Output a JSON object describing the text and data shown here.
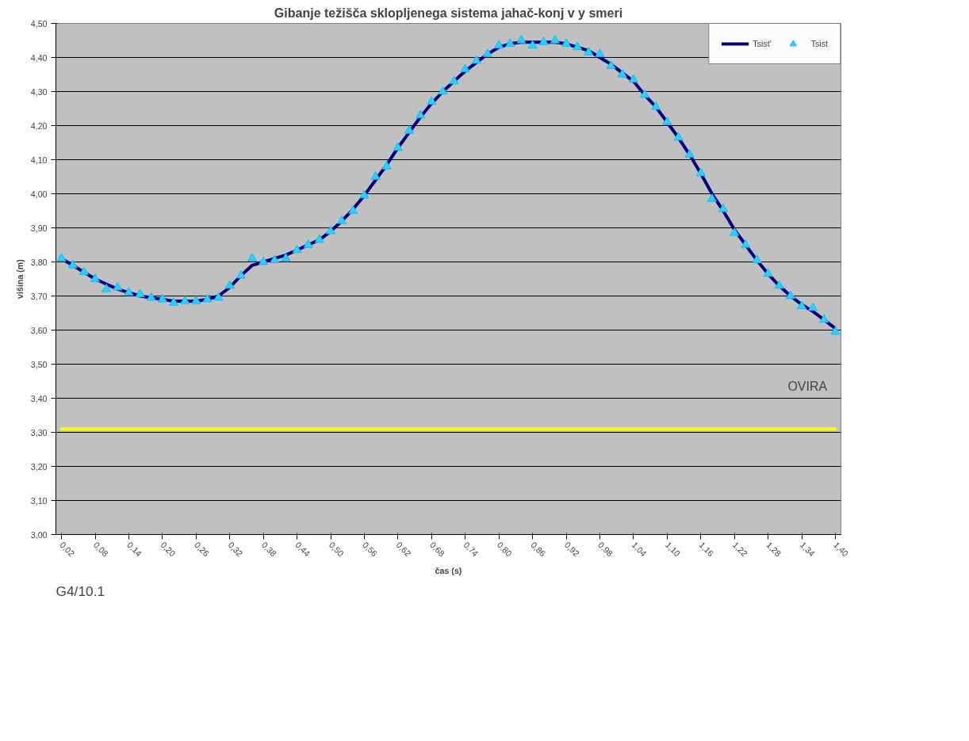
{
  "chart_data": {
    "type": "line",
    "title": "Gibanje težišča sklopljenega sistema jahač-konj v y smeri",
    "xlabel": "čas (s)",
    "ylabel": "višina (m)",
    "x": [
      0.02,
      0.04,
      0.06,
      0.08,
      0.1,
      0.12,
      0.14,
      0.16,
      0.18,
      0.2,
      0.22,
      0.24,
      0.26,
      0.28,
      0.3,
      0.32,
      0.34,
      0.36,
      0.38,
      0.4,
      0.42,
      0.44,
      0.46,
      0.48,
      0.5,
      0.52,
      0.54,
      0.56,
      0.58,
      0.6,
      0.62,
      0.64,
      0.66,
      0.68,
      0.7,
      0.72,
      0.74,
      0.76,
      0.78,
      0.8,
      0.82,
      0.84,
      0.86,
      0.88,
      0.9,
      0.92,
      0.94,
      0.96,
      0.98,
      1.0,
      1.02,
      1.04,
      1.06,
      1.08,
      1.1,
      1.12,
      1.14,
      1.16,
      1.18,
      1.2,
      1.22,
      1.24,
      1.26,
      1.28,
      1.3,
      1.32,
      1.34,
      1.36,
      1.38,
      1.4
    ],
    "series": [
      {
        "name": "Tsist'",
        "type": "line",
        "color": "#000080",
        "marker": "none",
        "values": [
          3.81,
          3.79,
          3.77,
          3.75,
          3.735,
          3.72,
          3.71,
          3.7,
          3.695,
          3.69,
          3.685,
          3.685,
          3.685,
          3.69,
          3.7,
          3.725,
          3.76,
          3.79,
          3.8,
          3.81,
          3.82,
          3.835,
          3.85,
          3.865,
          3.89,
          3.92,
          3.955,
          3.995,
          4.04,
          4.085,
          4.135,
          4.18,
          4.225,
          4.265,
          4.3,
          4.33,
          4.36,
          4.385,
          4.41,
          4.43,
          4.44,
          4.445,
          4.445,
          4.445,
          4.445,
          4.44,
          4.43,
          4.42,
          4.4,
          4.38,
          4.355,
          4.33,
          4.29,
          4.255,
          4.21,
          4.165,
          4.115,
          4.06,
          4.0,
          3.95,
          3.895,
          3.85,
          3.805,
          3.765,
          3.73,
          3.7,
          3.675,
          3.655,
          3.63,
          3.605
        ]
      },
      {
        "name": "Tsist",
        "type": "scatter",
        "color": "#33ccff",
        "marker": "triangle",
        "values": [
          3.81,
          3.79,
          3.77,
          3.75,
          3.72,
          3.725,
          3.71,
          3.705,
          3.695,
          3.69,
          3.68,
          3.685,
          3.685,
          3.69,
          3.695,
          3.73,
          3.76,
          3.81,
          3.8,
          3.805,
          3.81,
          3.835,
          3.85,
          3.865,
          3.89,
          3.92,
          3.95,
          3.995,
          4.05,
          4.08,
          4.135,
          4.185,
          4.23,
          4.27,
          4.3,
          4.33,
          4.365,
          4.39,
          4.41,
          4.435,
          4.44,
          4.45,
          4.435,
          4.445,
          4.45,
          4.44,
          4.43,
          4.415,
          4.41,
          4.375,
          4.35,
          4.335,
          4.29,
          4.255,
          4.21,
          4.165,
          4.115,
          4.06,
          3.985,
          3.955,
          3.885,
          3.85,
          3.805,
          3.765,
          3.73,
          3.7,
          3.67,
          3.665,
          3.63,
          3.595
        ]
      }
    ],
    "xlim": [
      0.01,
      1.41
    ],
    "xticks": [
      {
        "value": 0.02,
        "label": "0,02"
      },
      {
        "value": 0.08,
        "label": "0,08"
      },
      {
        "value": 0.14,
        "label": "0,14"
      },
      {
        "value": 0.2,
        "label": "0,20"
      },
      {
        "value": 0.26,
        "label": "0,26"
      },
      {
        "value": 0.32,
        "label": "0,32"
      },
      {
        "value": 0.38,
        "label": "0,38"
      },
      {
        "value": 0.44,
        "label": "0,44"
      },
      {
        "value": 0.5,
        "label": "0,50"
      },
      {
        "value": 0.56,
        "label": "0,56"
      },
      {
        "value": 0.62,
        "label": "0,62"
      },
      {
        "value": 0.68,
        "label": "0,68"
      },
      {
        "value": 0.74,
        "label": "0,74"
      },
      {
        "value": 0.8,
        "label": "0,80"
      },
      {
        "value": 0.86,
        "label": "0,86"
      },
      {
        "value": 0.92,
        "label": "0,92"
      },
      {
        "value": 0.98,
        "label": "0,98"
      },
      {
        "value": 1.04,
        "label": "1,04"
      },
      {
        "value": 1.1,
        "label": "1,10"
      },
      {
        "value": 1.16,
        "label": "1,16"
      },
      {
        "value": 1.22,
        "label": "1,22"
      },
      {
        "value": 1.28,
        "label": "1,28"
      },
      {
        "value": 1.34,
        "label": "1,34"
      },
      {
        "value": 1.4,
        "label": "1,40"
      }
    ],
    "ylim": [
      3.0,
      4.5
    ],
    "yticks": [
      {
        "value": 3.0,
        "label": "3,00"
      },
      {
        "value": 3.1,
        "label": "3,10"
      },
      {
        "value": 3.2,
        "label": "3,20"
      },
      {
        "value": 3.3,
        "label": "3,30"
      },
      {
        "value": 3.4,
        "label": "3,40"
      },
      {
        "value": 3.5,
        "label": "3,50"
      },
      {
        "value": 3.6,
        "label": "3,60"
      },
      {
        "value": 3.7,
        "label": "3,70"
      },
      {
        "value": 3.8,
        "label": "3,80"
      },
      {
        "value": 3.9,
        "label": "3,90"
      },
      {
        "value": 4.0,
        "label": "4,00"
      },
      {
        "value": 4.1,
        "label": "4,10"
      },
      {
        "value": 4.2,
        "label": "4,20"
      },
      {
        "value": 4.3,
        "label": "4,30"
      },
      {
        "value": 4.4,
        "label": "4,40"
      },
      {
        "value": 4.5,
        "label": "4,50"
      }
    ],
    "grid": "y",
    "legend": "top right",
    "ref_lines": [
      {
        "axis": "y",
        "value": 3.31,
        "label": "OVIRA",
        "color": "#ffff00"
      }
    ],
    "annotations": [
      "G4/10.1"
    ]
  }
}
